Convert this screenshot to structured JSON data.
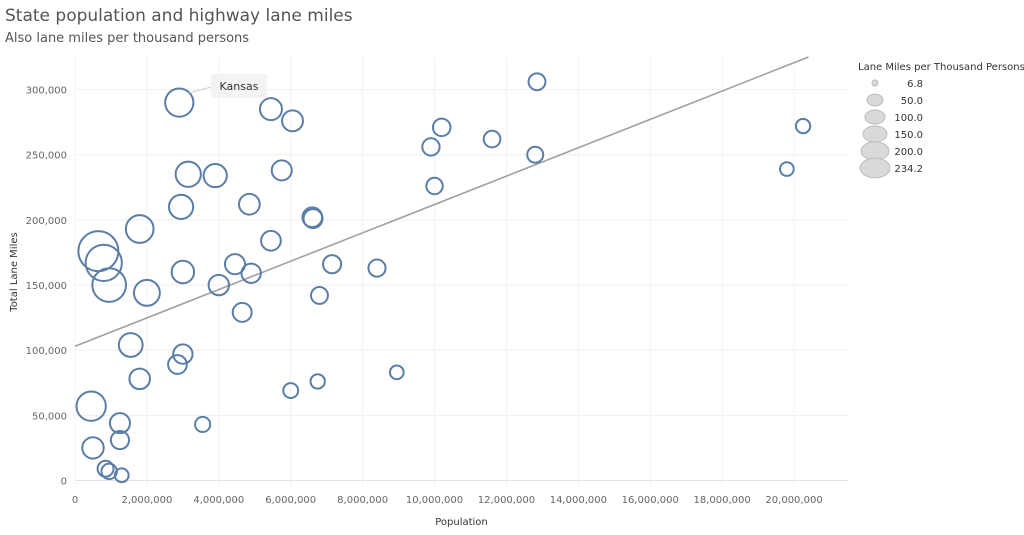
{
  "chart_data": {
    "type": "scatter",
    "title": "State population and highway lane miles",
    "subtitle": "Also lane miles per thousand persons",
    "xlabel": "Population",
    "ylabel": "Total Lane Miles",
    "xlim": [
      0,
      21500000
    ],
    "ylim": [
      -5000,
      325000
    ],
    "x_ticks": [
      0,
      2000000,
      4000000,
      6000000,
      8000000,
      10000000,
      12000000,
      14000000,
      16000000,
      18000000,
      20000000
    ],
    "x_tick_labels": [
      "0",
      "2,000,000",
      "4,000,000",
      "6,000,000",
      "8,000,000",
      "10,000,000",
      "12,000,000",
      "14,000,000",
      "16,000,000",
      "18,000,000",
      "20,000,000"
    ],
    "y_ticks": [
      0,
      50000,
      100000,
      150000,
      200000,
      250000,
      300000
    ],
    "y_tick_labels": [
      "0",
      "50,000",
      "100,000",
      "150,000",
      "200,000",
      "250,000",
      "300,000"
    ],
    "grid": true,
    "trend_line": {
      "x0": 0,
      "y0": 103000,
      "x1": 20400000,
      "y1": 325000
    },
    "annotation": {
      "label": "Kansas",
      "x": 2900000,
      "y": 290000
    },
    "legend": {
      "title": "Lane Miles per Thousand Persons",
      "placement": "right",
      "entries": [
        {
          "label": "6.8",
          "value": 6.8
        },
        {
          "label": "50.0",
          "value": 50.0
        },
        {
          "label": "100.0",
          "value": 100.0
        },
        {
          "label": "150.0",
          "value": 150.0
        },
        {
          "label": "200.0",
          "value": 200.0
        },
        {
          "label": "234.2",
          "value": 234.2
        }
      ]
    },
    "colors": {
      "marker": "#5b7ea6",
      "trend": "#a0a0a0",
      "legend_fill": "#d9d9d9",
      "legend_stroke": "#bdbdbd"
    },
    "points": [
      {
        "x": 2900000,
        "y": 290000,
        "s": 100
      },
      {
        "x": 5450000,
        "y": 285000,
        "s": 52
      },
      {
        "x": 6050000,
        "y": 276000,
        "s": 45
      },
      {
        "x": 12850000,
        "y": 306000,
        "s": 24
      },
      {
        "x": 10200000,
        "y": 271000,
        "s": 27
      },
      {
        "x": 9900000,
        "y": 256000,
        "s": 26
      },
      {
        "x": 11600000,
        "y": 262000,
        "s": 23
      },
      {
        "x": 12800000,
        "y": 250000,
        "s": 20
      },
      {
        "x": 20250000,
        "y": 272000,
        "s": 14
      },
      {
        "x": 19800000,
        "y": 239000,
        "s": 12
      },
      {
        "x": 3150000,
        "y": 235000,
        "s": 75
      },
      {
        "x": 3900000,
        "y": 234000,
        "s": 60
      },
      {
        "x": 5750000,
        "y": 238000,
        "s": 40
      },
      {
        "x": 10000000,
        "y": 226000,
        "s": 22
      },
      {
        "x": 2950000,
        "y": 210000,
        "s": 67
      },
      {
        "x": 4850000,
        "y": 212000,
        "s": 44
      },
      {
        "x": 6600000,
        "y": 202000,
        "s": 38
      },
      {
        "x": 6620000,
        "y": 201000,
        "s": 34
      },
      {
        "x": 1800000,
        "y": 193000,
        "s": 95
      },
      {
        "x": 650000,
        "y": 176000,
        "s": 234
      },
      {
        "x": 800000,
        "y": 167000,
        "s": 185
      },
      {
        "x": 5450000,
        "y": 184000,
        "s": 38
      },
      {
        "x": 950000,
        "y": 150000,
        "s": 155
      },
      {
        "x": 2000000,
        "y": 144000,
        "s": 80
      },
      {
        "x": 3000000,
        "y": 160000,
        "s": 55
      },
      {
        "x": 4450000,
        "y": 166000,
        "s": 40
      },
      {
        "x": 4900000,
        "y": 159000,
        "s": 36
      },
      {
        "x": 7150000,
        "y": 166000,
        "s": 30
      },
      {
        "x": 8400000,
        "y": 163000,
        "s": 25
      },
      {
        "x": 4000000,
        "y": 150000,
        "s": 42
      },
      {
        "x": 6800000,
        "y": 142000,
        "s": 24
      },
      {
        "x": 4650000,
        "y": 129000,
        "s": 34
      },
      {
        "x": 1550000,
        "y": 104000,
        "s": 64
      },
      {
        "x": 3000000,
        "y": 97000,
        "s": 36
      },
      {
        "x": 2850000,
        "y": 89000,
        "s": 33
      },
      {
        "x": 1800000,
        "y": 78000,
        "s": 43
      },
      {
        "x": 6750000,
        "y": 76000,
        "s": 14
      },
      {
        "x": 8950000,
        "y": 83000,
        "s": 12
      },
      {
        "x": 6000000,
        "y": 69000,
        "s": 16
      },
      {
        "x": 450000,
        "y": 57000,
        "s": 110
      },
      {
        "x": 1250000,
        "y": 44000,
        "s": 40
      },
      {
        "x": 3550000,
        "y": 43000,
        "s": 17
      },
      {
        "x": 1250000,
        "y": 31000,
        "s": 30
      },
      {
        "x": 500000,
        "y": 25000,
        "s": 48
      },
      {
        "x": 850000,
        "y": 9000,
        "s": 20
      },
      {
        "x": 950000,
        "y": 7000,
        "s": 18
      },
      {
        "x": 1300000,
        "y": 4000,
        "s": 12
      }
    ]
  }
}
